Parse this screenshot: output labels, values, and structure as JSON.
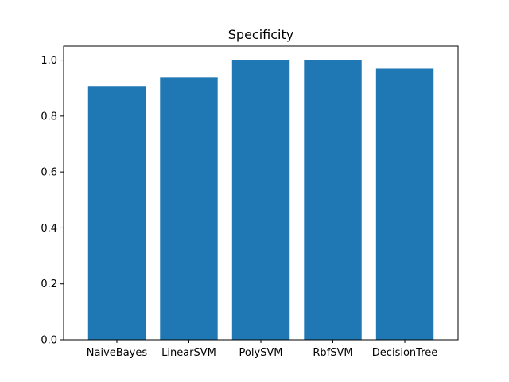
{
  "chart_data": {
    "type": "bar",
    "title": "Specificity",
    "xlabel": "",
    "ylabel": "",
    "categories": [
      "NaiveBayes",
      "LinearSVM",
      "PolySVM",
      "RbfSVM",
      "DecisionTree"
    ],
    "values": [
      0.907,
      0.938,
      1.0,
      1.0,
      0.969
    ],
    "ylim": [
      0,
      1.05
    ],
    "yticks": [
      "0.0",
      "0.2",
      "0.4",
      "0.6",
      "0.8",
      "1.0"
    ],
    "grid": false,
    "colors": {
      "bar": "#1f77b4",
      "axis": "#000000"
    }
  }
}
